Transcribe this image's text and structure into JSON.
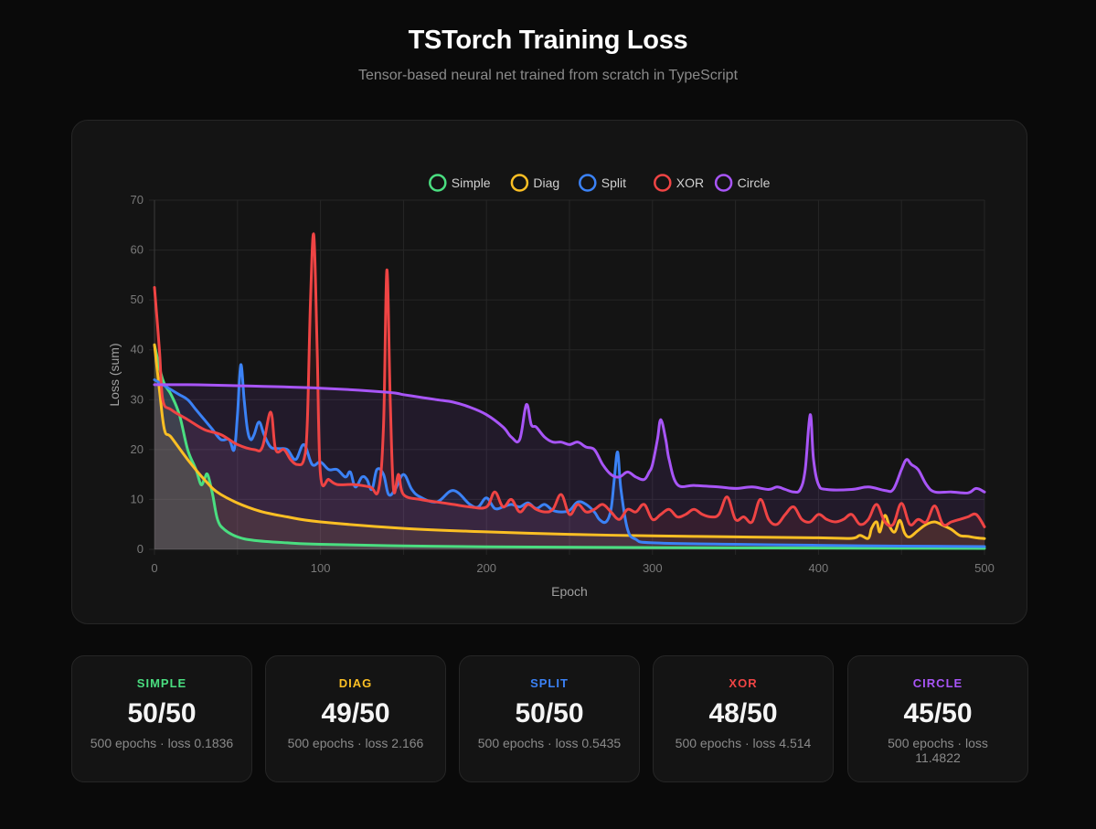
{
  "header": {
    "title": "TSTorch Training Loss",
    "subtitle": "Tensor-based neural net trained from scratch in TypeScript"
  },
  "chart_data": {
    "type": "line",
    "xlabel": "Epoch",
    "ylabel": "Loss (sum)",
    "xlim": [
      0,
      500
    ],
    "ylim": [
      0,
      70
    ],
    "x_ticks": [
      "0",
      "100",
      "200",
      "300",
      "400",
      "500"
    ],
    "y_ticks": [
      "0",
      "10",
      "20",
      "30",
      "40",
      "50",
      "60",
      "70"
    ],
    "grid": true,
    "legend_position": "top-center",
    "series": [
      {
        "name": "Simple",
        "color": "#4ade80",
        "fill": "rgba(74,222,128,0.18)",
        "points": [
          [
            0,
            41
          ],
          [
            5,
            34
          ],
          [
            10,
            31
          ],
          [
            15,
            27
          ],
          [
            20,
            20
          ],
          [
            25,
            16
          ],
          [
            28,
            13
          ],
          [
            30,
            14
          ],
          [
            32,
            15
          ],
          [
            35,
            11
          ],
          [
            38,
            6
          ],
          [
            42,
            4
          ],
          [
            50,
            2.5
          ],
          [
            60,
            1.8
          ],
          [
            80,
            1.3
          ],
          [
            100,
            1
          ],
          [
            150,
            0.7
          ],
          [
            200,
            0.5
          ],
          [
            300,
            0.35
          ],
          [
            400,
            0.25
          ],
          [
            500,
            0.18
          ]
        ]
      },
      {
        "name": "Diag",
        "color": "#fbbf24",
        "fill": "rgba(251,191,36,0.10)",
        "points": [
          [
            0,
            41
          ],
          [
            3,
            32
          ],
          [
            6,
            24
          ],
          [
            10,
            22.5
          ],
          [
            20,
            18
          ],
          [
            30,
            14
          ],
          [
            40,
            11
          ],
          [
            60,
            8
          ],
          [
            80,
            6.5
          ],
          [
            100,
            5.5
          ],
          [
            150,
            4.2
          ],
          [
            200,
            3.5
          ],
          [
            250,
            3
          ],
          [
            300,
            2.7
          ],
          [
            350,
            2.5
          ],
          [
            400,
            2.3
          ],
          [
            420,
            2.2
          ],
          [
            425,
            2.8
          ],
          [
            430,
            2.2
          ],
          [
            432,
            4.2
          ],
          [
            435,
            5.5
          ],
          [
            437,
            3.5
          ],
          [
            440,
            6.8
          ],
          [
            443,
            4.5
          ],
          [
            446,
            3.5
          ],
          [
            449,
            5.8
          ],
          [
            452,
            3.2
          ],
          [
            455,
            2.5
          ],
          [
            460,
            3.8
          ],
          [
            465,
            5
          ],
          [
            470,
            5.5
          ],
          [
            475,
            4.8
          ],
          [
            480,
            4
          ],
          [
            485,
            2.8
          ],
          [
            490,
            2.6
          ],
          [
            495,
            2.3
          ],
          [
            500,
            2.166
          ]
        ]
      },
      {
        "name": "Split",
        "color": "#3b82f6",
        "fill": "rgba(59,130,246,0.10)",
        "points": [
          [
            0,
            34
          ],
          [
            5,
            33
          ],
          [
            10,
            32
          ],
          [
            15,
            31
          ],
          [
            20,
            30
          ],
          [
            25,
            28
          ],
          [
            30,
            26
          ],
          [
            35,
            24
          ],
          [
            40,
            22
          ],
          [
            45,
            22
          ],
          [
            48,
            20
          ],
          [
            50,
            27
          ],
          [
            52,
            37
          ],
          [
            54,
            30
          ],
          [
            56,
            24
          ],
          [
            58,
            22
          ],
          [
            60,
            23
          ],
          [
            63,
            25.5
          ],
          [
            66,
            23
          ],
          [
            70,
            20.5
          ],
          [
            75,
            20.2
          ],
          [
            80,
            20
          ],
          [
            85,
            18
          ],
          [
            90,
            21
          ],
          [
            95,
            17
          ],
          [
            100,
            17.5
          ],
          [
            105,
            16
          ],
          [
            110,
            16
          ],
          [
            115,
            14.5
          ],
          [
            118,
            15.5
          ],
          [
            121,
            12.5
          ],
          [
            125,
            14.5
          ],
          [
            128,
            14
          ],
          [
            131,
            12
          ],
          [
            134,
            16
          ],
          [
            138,
            15
          ],
          [
            141,
            11
          ],
          [
            145,
            12
          ],
          [
            150,
            15
          ],
          [
            155,
            12
          ],
          [
            160,
            10.5
          ],
          [
            170,
            9.5
          ],
          [
            180,
            11.8
          ],
          [
            190,
            9
          ],
          [
            195,
            8.5
          ],
          [
            200,
            10.3
          ],
          [
            205,
            8.2
          ],
          [
            210,
            8.5
          ],
          [
            215,
            9
          ],
          [
            220,
            8.5
          ],
          [
            225,
            9.3
          ],
          [
            230,
            8.2
          ],
          [
            235,
            9
          ],
          [
            240,
            7.8
          ],
          [
            245,
            7.5
          ],
          [
            250,
            7.8
          ],
          [
            255,
            9.5
          ],
          [
            260,
            9
          ],
          [
            265,
            7.5
          ],
          [
            268,
            6
          ],
          [
            272,
            5.5
          ],
          [
            275,
            8
          ],
          [
            277,
            14
          ],
          [
            279,
            19.5
          ],
          [
            281,
            12
          ],
          [
            285,
            4
          ],
          [
            290,
            2
          ],
          [
            300,
            1.3
          ],
          [
            350,
            1
          ],
          [
            400,
            0.8
          ],
          [
            450,
            0.65
          ],
          [
            500,
            0.5435
          ]
        ]
      },
      {
        "name": "XOR",
        "color": "#ef4444",
        "fill": "rgba(239,68,68,0.10)",
        "points": [
          [
            0,
            52.5
          ],
          [
            3,
            40
          ],
          [
            5,
            30
          ],
          [
            10,
            28
          ],
          [
            20,
            26
          ],
          [
            30,
            24
          ],
          [
            40,
            23
          ],
          [
            50,
            21
          ],
          [
            60,
            20
          ],
          [
            65,
            20.5
          ],
          [
            70,
            27.5
          ],
          [
            73,
            20
          ],
          [
            78,
            20
          ],
          [
            82,
            18
          ],
          [
            86,
            17
          ],
          [
            90,
            18
          ],
          [
            92,
            25
          ],
          [
            94,
            50
          ],
          [
            96,
            63
          ],
          [
            98,
            40
          ],
          [
            100,
            15
          ],
          [
            105,
            14
          ],
          [
            110,
            13
          ],
          [
            120,
            13
          ],
          [
            130,
            12.5
          ],
          [
            135,
            12
          ],
          [
            138,
            25
          ],
          [
            140,
            56
          ],
          [
            142,
            30
          ],
          [
            144,
            12
          ],
          [
            147,
            15
          ],
          [
            150,
            11
          ],
          [
            160,
            10
          ],
          [
            170,
            9.5
          ],
          [
            180,
            9
          ],
          [
            190,
            8.5
          ],
          [
            200,
            8.5
          ],
          [
            205,
            11.5
          ],
          [
            210,
            8.5
          ],
          [
            215,
            10
          ],
          [
            220,
            7.5
          ],
          [
            225,
            9
          ],
          [
            230,
            8
          ],
          [
            235,
            7.5
          ],
          [
            240,
            8
          ],
          [
            245,
            11
          ],
          [
            250,
            7
          ],
          [
            255,
            9
          ],
          [
            260,
            7.5
          ],
          [
            265,
            8
          ],
          [
            270,
            9
          ],
          [
            275,
            7.5
          ],
          [
            280,
            6
          ],
          [
            285,
            8
          ],
          [
            290,
            7.5
          ],
          [
            295,
            9
          ],
          [
            300,
            6
          ],
          [
            305,
            7
          ],
          [
            310,
            8
          ],
          [
            315,
            6.5
          ],
          [
            320,
            7
          ],
          [
            325,
            8
          ],
          [
            330,
            7
          ],
          [
            335,
            6.5
          ],
          [
            340,
            7
          ],
          [
            345,
            10.5
          ],
          [
            350,
            6
          ],
          [
            355,
            6.5
          ],
          [
            360,
            5.5
          ],
          [
            365,
            10
          ],
          [
            370,
            6
          ],
          [
            375,
            5
          ],
          [
            380,
            7
          ],
          [
            385,
            8.5
          ],
          [
            390,
            6
          ],
          [
            395,
            5.5
          ],
          [
            400,
            7
          ],
          [
            405,
            6
          ],
          [
            410,
            5.5
          ],
          [
            415,
            6
          ],
          [
            420,
            7
          ],
          [
            425,
            5
          ],
          [
            430,
            6
          ],
          [
            435,
            9
          ],
          [
            440,
            5.5
          ],
          [
            445,
            5
          ],
          [
            450,
            9.2
          ],
          [
            455,
            5
          ],
          [
            460,
            6
          ],
          [
            465,
            5.5
          ],
          [
            470,
            8.7
          ],
          [
            475,
            5
          ],
          [
            480,
            5.5
          ],
          [
            485,
            6
          ],
          [
            490,
            6.5
          ],
          [
            495,
            7
          ],
          [
            500,
            4.514
          ]
        ]
      },
      {
        "name": "Circle",
        "color": "#a855f7",
        "fill": "rgba(168,85,247,0.10)",
        "points": [
          [
            0,
            33
          ],
          [
            20,
            33
          ],
          [
            50,
            32.8
          ],
          [
            100,
            32.3
          ],
          [
            140,
            31.5
          ],
          [
            150,
            31
          ],
          [
            160,
            30.5
          ],
          [
            170,
            30
          ],
          [
            180,
            29.5
          ],
          [
            190,
            28.5
          ],
          [
            200,
            27
          ],
          [
            210,
            24.5
          ],
          [
            215,
            22.5
          ],
          [
            220,
            22
          ],
          [
            224,
            29
          ],
          [
            227,
            25
          ],
          [
            230,
            24.5
          ],
          [
            235,
            22.5
          ],
          [
            240,
            21.5
          ],
          [
            245,
            21.5
          ],
          [
            250,
            21
          ],
          [
            255,
            21.5
          ],
          [
            260,
            20.5
          ],
          [
            265,
            20
          ],
          [
            270,
            17
          ],
          [
            275,
            15
          ],
          [
            280,
            14.5
          ],
          [
            285,
            15.5
          ],
          [
            290,
            14.5
          ],
          [
            295,
            14
          ],
          [
            298,
            15.5
          ],
          [
            300,
            17
          ],
          [
            303,
            22
          ],
          [
            305,
            26
          ],
          [
            308,
            22
          ],
          [
            310,
            18
          ],
          [
            315,
            13
          ],
          [
            325,
            12.8
          ],
          [
            340,
            12.5
          ],
          [
            350,
            12.2
          ],
          [
            360,
            12.5
          ],
          [
            370,
            12
          ],
          [
            375,
            12.5
          ],
          [
            380,
            12
          ],
          [
            385,
            11.5
          ],
          [
            389,
            12
          ],
          [
            392,
            16
          ],
          [
            395,
            27
          ],
          [
            397,
            18
          ],
          [
            400,
            13
          ],
          [
            405,
            12
          ],
          [
            420,
            12
          ],
          [
            430,
            12.5
          ],
          [
            440,
            11.8
          ],
          [
            445,
            12
          ],
          [
            450,
            16
          ],
          [
            453,
            18
          ],
          [
            456,
            17
          ],
          [
            460,
            16
          ],
          [
            465,
            13
          ],
          [
            470,
            11.5
          ],
          [
            480,
            11.5
          ],
          [
            490,
            11.3
          ],
          [
            495,
            12.2
          ],
          [
            500,
            11.4822
          ]
        ]
      }
    ]
  },
  "stats": [
    {
      "name": "SIMPLE",
      "score": "50/50",
      "detail": "500 epochs · loss 0.1836",
      "color": "#4ade80"
    },
    {
      "name": "DIAG",
      "score": "49/50",
      "detail": "500 epochs · loss 2.166",
      "color": "#fbbf24"
    },
    {
      "name": "SPLIT",
      "score": "50/50",
      "detail": "500 epochs · loss 0.5435",
      "color": "#3b82f6"
    },
    {
      "name": "XOR",
      "score": "48/50",
      "detail": "500 epochs · loss 4.514",
      "color": "#ef4444"
    },
    {
      "name": "CIRCLE",
      "score": "45/50",
      "detail": "500 epochs · loss 11.4822",
      "color": "#a855f7"
    }
  ]
}
